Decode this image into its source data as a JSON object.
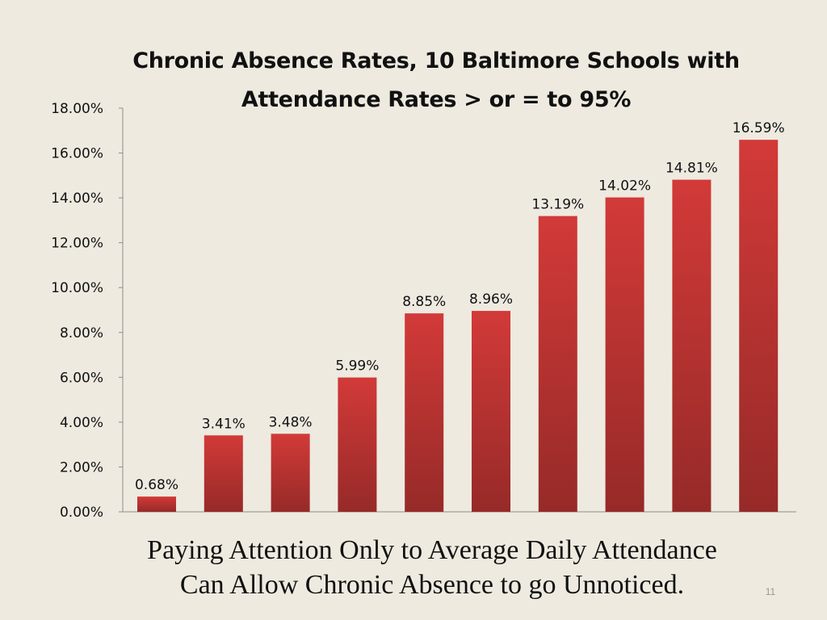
{
  "slide": {
    "caption_line1": "Paying Attention Only to Average Daily Attendance",
    "caption_line2": "Can Allow Chronic Absence to go Unnoticed.",
    "page_number": "11"
  },
  "colors": {
    "background": "#EEEAE0",
    "bar_top": "#D23A38",
    "bar_bottom": "#962A28",
    "axis": "#8C8C8C",
    "text": "#111111"
  },
  "chart_data": {
    "type": "bar",
    "title_line1": "Chronic Absence Rates, 10 Baltimore Schools with",
    "title_line2": "Attendance Rates > or = to 95%",
    "xlabel": "",
    "ylabel": "",
    "ylim": [
      0,
      18
    ],
    "yticks": [
      0,
      2,
      4,
      6,
      8,
      10,
      12,
      14,
      16,
      18
    ],
    "ytick_labels": [
      "0.00%",
      "2.00%",
      "4.00%",
      "6.00%",
      "8.00%",
      "10.00%",
      "12.00%",
      "14.00%",
      "16.00%",
      "18.00%"
    ],
    "values": [
      0.68,
      3.41,
      3.48,
      5.99,
      8.85,
      8.96,
      13.19,
      14.02,
      14.81,
      16.59
    ],
    "data_labels": [
      "0.68%",
      "3.41%",
      "3.48%",
      "5.99%",
      "8.85%",
      "8.96%",
      "13.19%",
      "14.02%",
      "14.81%",
      "16.59%"
    ],
    "grid": false,
    "legend": "none"
  }
}
